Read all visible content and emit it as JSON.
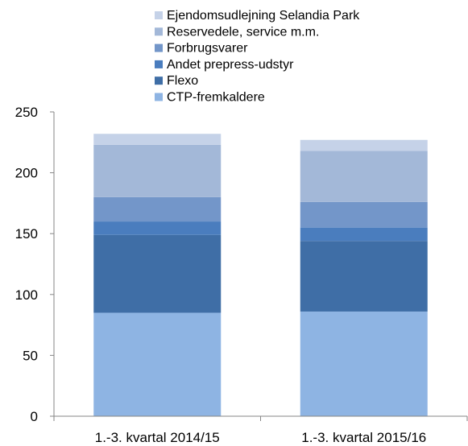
{
  "chart_data": {
    "type": "bar",
    "stacked": true,
    "categories": [
      "1.-3. kvartal 2014/15",
      "1.-3. kvartal 2015/16"
    ],
    "series": [
      {
        "name": "CTP-fremkaldere",
        "values": [
          85,
          86
        ],
        "color": "#8EB4E3"
      },
      {
        "name": "Flexo",
        "values": [
          64,
          58
        ],
        "color": "#3F6EA6"
      },
      {
        "name": "Andet prepress-udstyr",
        "values": [
          11,
          11
        ],
        "color": "#4A7DBE"
      },
      {
        "name": "Forbrugsvarer",
        "values": [
          20,
          21
        ],
        "color": "#7396C9"
      },
      {
        "name": "Reservedele, service m.m.",
        "values": [
          43,
          42
        ],
        "color": "#A3B8D8"
      },
      {
        "name": "Ejendomsudlejning Selandia Park",
        "values": [
          9,
          9
        ],
        "color": "#C5D2E8"
      }
    ],
    "yticks": [
      0,
      50,
      100,
      150,
      200,
      250
    ],
    "ylim": [
      0,
      250
    ],
    "legend_position": "top",
    "legend_order": "reverse",
    "grid": false
  }
}
